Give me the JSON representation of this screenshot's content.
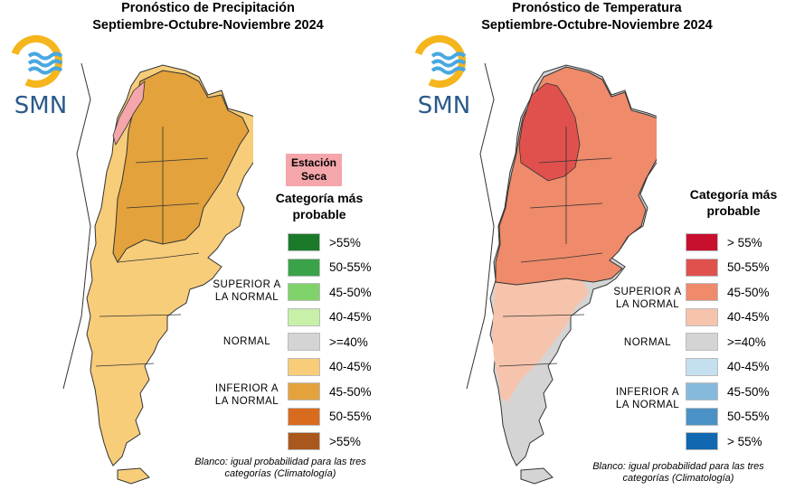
{
  "precip": {
    "title1": "Pronóstico de Precipitación",
    "title2": "Septiembre-Octubre-Noviembre 2024",
    "logo_text": "SMN",
    "estacion_seca": "Estación Seca",
    "legend_title": "Categoría más probable",
    "group_superior": "SUPERIOR A LA NORMAL",
    "group_normal": "NORMAL",
    "group_inferior": "INFERIOR A LA NORMAL",
    "legend": [
      {
        "label": ">55%",
        "color": "#1a7a2a"
      },
      {
        "label": "50-55%",
        "color": "#3aa34a"
      },
      {
        "label": "45-50%",
        "color": "#7fd36a"
      },
      {
        "label": "40-45%",
        "color": "#c8f0a8"
      },
      {
        "label": ">=40%",
        "color": "#d4d4d4"
      },
      {
        "label": "40-45%",
        "color": "#f7cd7a"
      },
      {
        "label": "45-50%",
        "color": "#e3a23c"
      },
      {
        "label": "50-55%",
        "color": "#d96b1e"
      },
      {
        "label": ">55%",
        "color": "#a9571c"
      }
    ],
    "note": "Blanco: igual probabilidad para las tres categorías (Climatología)"
  },
  "temp": {
    "title1": "Pronóstico de Temperatura",
    "title2": "Septiembre-Octubre-Noviembre 2024",
    "logo_text": "SMN",
    "legend_title": "Categoría más probable",
    "group_superior": "SUPERIOR A LA NORMAL",
    "group_normal": "NORMAL",
    "group_inferior": "INFERIOR A LA NORMAL",
    "legend": [
      {
        "label": "> 55%",
        "color": "#c8102e"
      },
      {
        "label": "50-55%",
        "color": "#e0514e"
      },
      {
        "label": "45-50%",
        "color": "#ef8a6a"
      },
      {
        "label": "40-45%",
        "color": "#f6c4ac"
      },
      {
        "label": ">=40%",
        "color": "#d4d4d4"
      },
      {
        "label": "40-45%",
        "color": "#c4dff0"
      },
      {
        "label": "45-50%",
        "color": "#86badc"
      },
      {
        "label": "50-55%",
        "color": "#4a92c6"
      },
      {
        "label": "> 55%",
        "color": "#1068b0"
      }
    ],
    "note": "Blanco: igual probabilidad para las tres categorías (Climatología)"
  },
  "colors": {
    "logo_blue": "#2a5a8c",
    "logo_yellow": "#f5b51c",
    "logo_wave": "#49a8e0",
    "estacion_seca": "#f4a6aa"
  }
}
